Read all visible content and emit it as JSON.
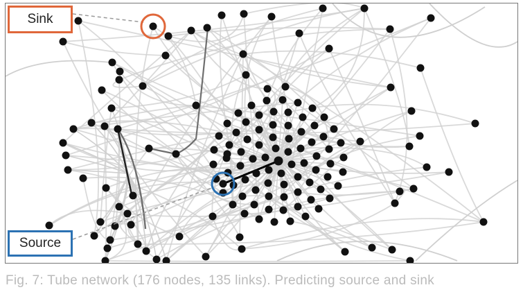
{
  "labels": {
    "sink": "Sink",
    "source": "Source"
  },
  "caption": "Fig. 7: Tube network (176 nodes, 135 links). Predicting source and sink",
  "colors": {
    "sink_accent": "#e0673a",
    "source_accent": "#2c72b3",
    "node": "#111111",
    "edge": "#cfcfcf",
    "path": "#000000"
  }
}
